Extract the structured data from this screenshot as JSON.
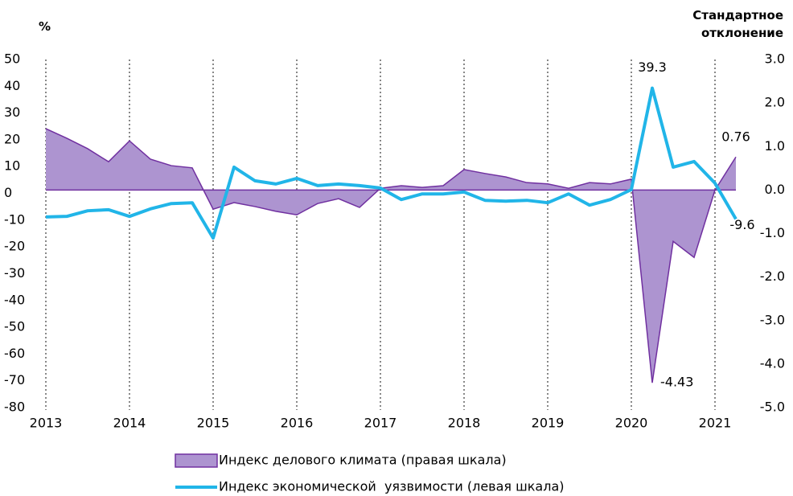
{
  "chart_data": {
    "type": "area_line",
    "y_label": "%",
    "y2_label": "Стандартное отклонение",
    "categories": [
      "2013",
      null,
      null,
      null,
      "2014",
      null,
      null,
      null,
      "2015",
      null,
      null,
      null,
      "2016",
      null,
      null,
      null,
      "2017",
      null,
      null,
      null,
      "2018",
      null,
      null,
      null,
      "2019",
      null,
      null,
      null,
      "2020",
      null,
      null,
      null,
      "2021",
      null
    ],
    "series": [
      {
        "name": "Индекс делового климата (правая шкала)",
        "kind": "area",
        "axis": "y2",
        "color": "#ad94d0",
        "stroke": "#7030a0",
        "values": [
          1.41,
          1.19,
          0.95,
          0.65,
          1.13,
          0.71,
          0.56,
          0.51,
          -0.44,
          -0.29,
          -0.38,
          -0.49,
          -0.57,
          -0.31,
          -0.2,
          -0.4,
          0.04,
          0.1,
          0.06,
          0.1,
          0.47,
          0.38,
          0.3,
          0.17,
          0.14,
          0.04,
          0.17,
          0.14,
          0.25,
          -4.43,
          -1.18,
          -1.55,
          0.0,
          0.76
        ]
      },
      {
        "name": "Индекс экономической  уязвимости (левая шкала)",
        "kind": "line",
        "axis": "y",
        "color": "#21b5e8",
        "values": [
          -8.8,
          -8.6,
          -6.5,
          -6.1,
          -8.6,
          -5.8,
          -3.8,
          -3.5,
          -16.7,
          9.8,
          4.7,
          3.5,
          5.6,
          2.9,
          3.5,
          2.9,
          2.0,
          -2.3,
          -0.2,
          -0.2,
          0.5,
          -2.6,
          -2.9,
          -2.6,
          -3.5,
          -0.2,
          -4.4,
          -2.3,
          1.4,
          39.3,
          9.8,
          11.9,
          3.8,
          -9.6
        ]
      }
    ],
    "ylim": [
      -80,
      50
    ],
    "yticks": [
      50,
      40,
      30,
      20,
      10,
      0,
      -10,
      -20,
      -30,
      -40,
      -50,
      -60,
      -70,
      -80
    ],
    "y2lim": [
      -5,
      3
    ],
    "y2ticks": [
      {
        "value": 3,
        "label": "3.0"
      },
      {
        "value": 2,
        "label": "2.0"
      },
      {
        "value": 1,
        "label": "1.0"
      },
      {
        "value": 0,
        "label": "0.0"
      },
      {
        "value": -1,
        "label": "-1.0"
      },
      {
        "value": -2,
        "label": "-2.0"
      },
      {
        "value": -3,
        "label": "-3.0"
      },
      {
        "value": -4,
        "label": "-4.0"
      },
      {
        "value": -5,
        "label": "-5.0"
      }
    ]
  }
}
